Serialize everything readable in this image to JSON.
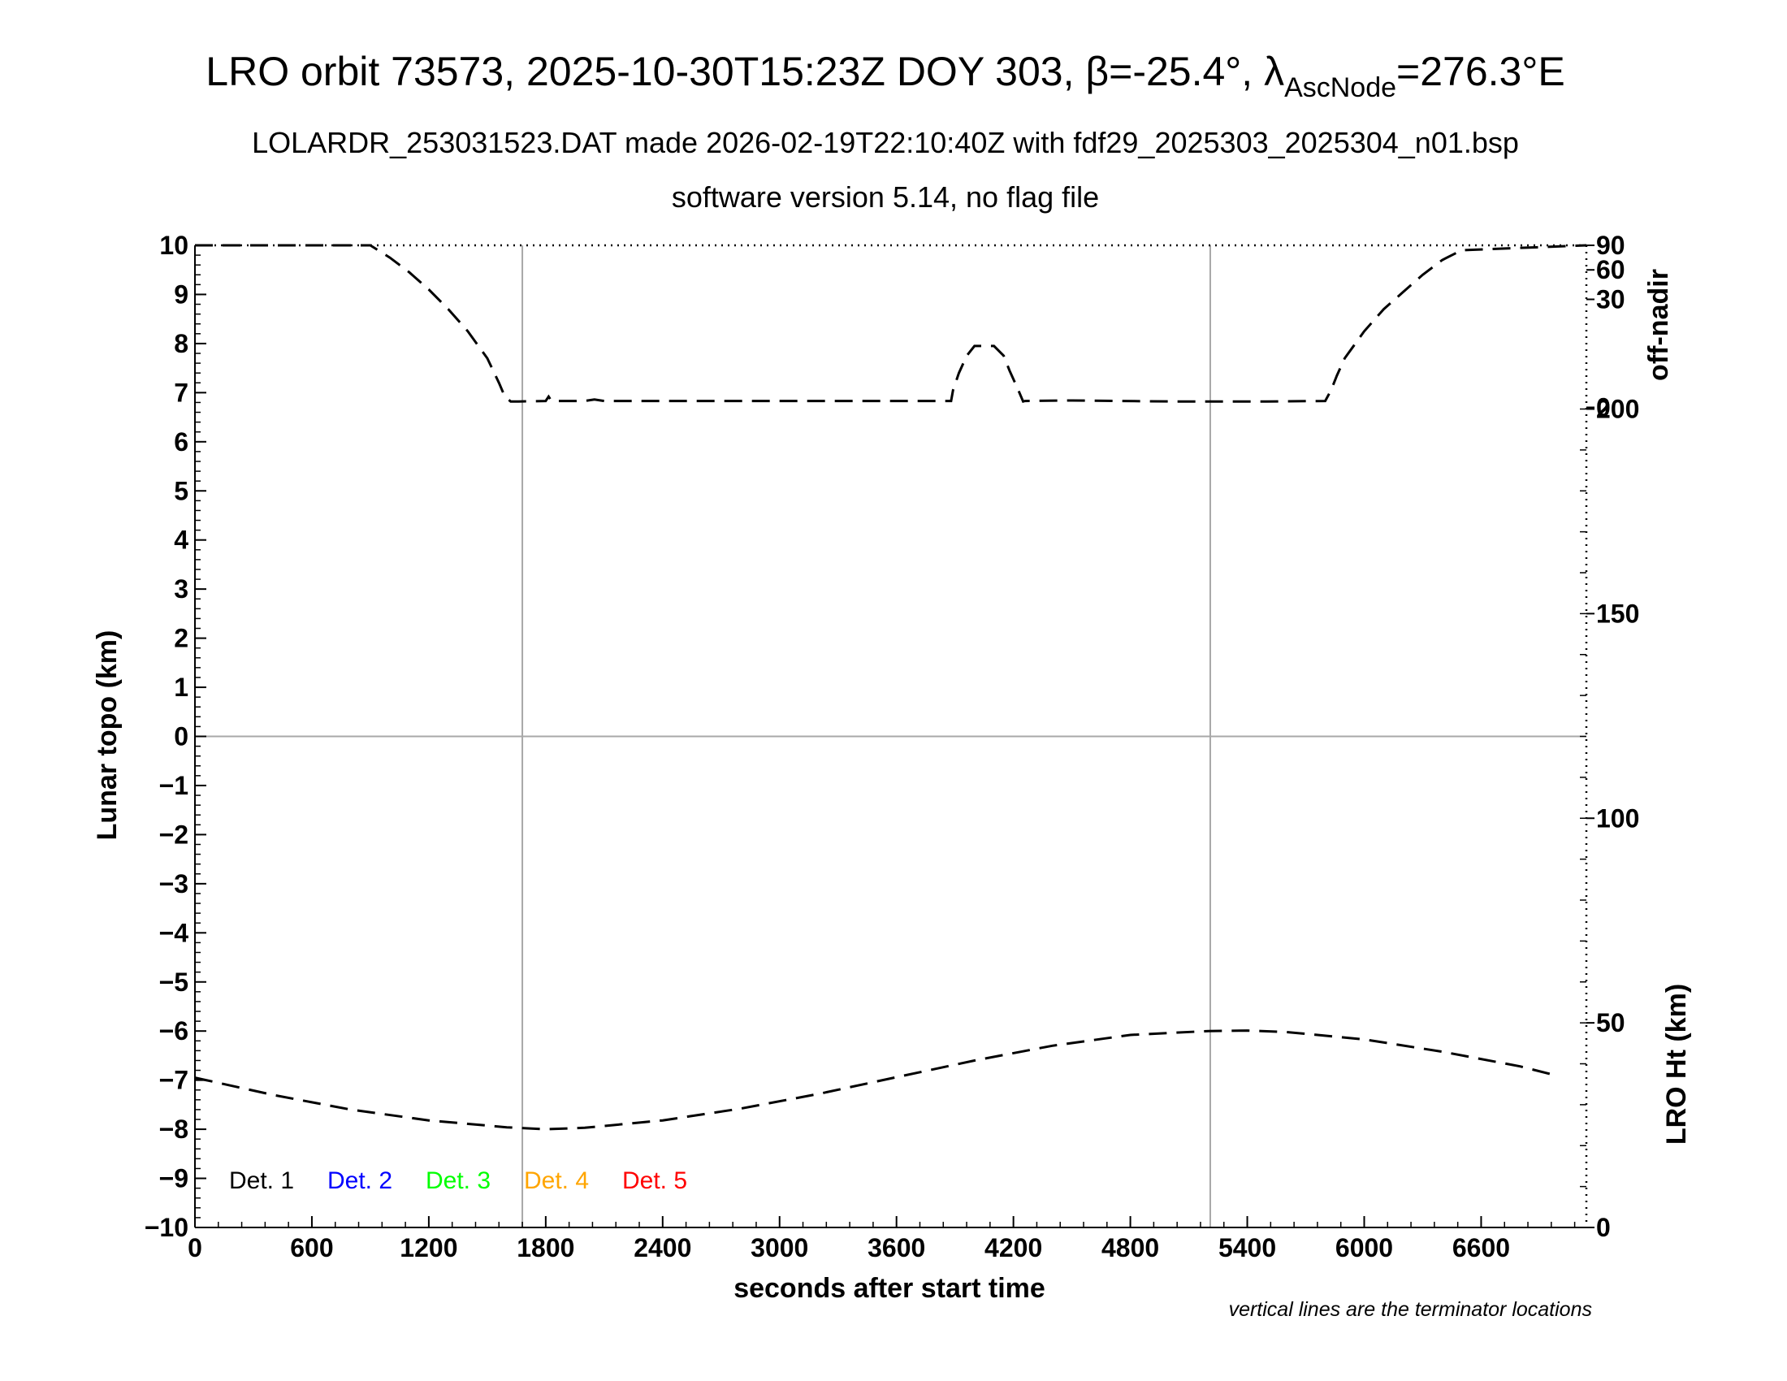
{
  "chart_data": {
    "type": "line",
    "title": {
      "main": "LRO orbit 73573, 2025-10-30T15:23Z DOY 303, β=-25.4°, λ",
      "sub_script": "AscNode",
      "tail": "=276.3°E"
    },
    "subtitle_1": "LOLARDR_253031523.DAT made 2026-02-19T22:10:40Z with fdf29_2025303_2025304_n01.bsp",
    "subtitle_2": "software version 5.14, no flag file",
    "xlabel": "seconds after start time",
    "ylabel_left": "Lunar topo (km)",
    "ylabel_right_top": "off-nadir",
    "ylabel_right_bottom": "LRO Ht (km)",
    "note": "vertical lines are the terminator locations",
    "xlim": [
      0,
      7140
    ],
    "ylim": [
      -10,
      10
    ],
    "x_ticks": [
      0,
      600,
      1200,
      1800,
      2400,
      3000,
      3600,
      4200,
      4800,
      5400,
      6000,
      6600
    ],
    "y_ticks": [
      10,
      9,
      8,
      7,
      6,
      5,
      4,
      3,
      2,
      1,
      0,
      -1,
      -2,
      -3,
      -4,
      -5,
      -6,
      -7,
      -8,
      -9,
      -10
    ],
    "y_tick_labels": [
      "10",
      "9",
      "8",
      "7",
      "6",
      "5",
      "4",
      "3",
      "2",
      "1",
      "0",
      "−1",
      "−2",
      "−3",
      "−4",
      "−5",
      "−6",
      "−7",
      "−8",
      "−9",
      "−10"
    ],
    "grid": {
      "horizontal_at": [
        0
      ],
      "terminator_x": [
        1680,
        5210
      ]
    },
    "right_axis_offnadir": {
      "tick_labels": [
        "90",
        "60",
        "30",
        "0"
      ],
      "tick_y_positions_km": [
        10,
        9.5,
        8.9,
        6.7
      ]
    },
    "right_axis_height": {
      "range_km": [
        0,
        240
      ],
      "tick_labels": [
        "200",
        "150",
        "100",
        "50",
        "0"
      ],
      "tick_values": [
        200,
        150,
        100,
        50,
        0
      ]
    },
    "legend": [
      {
        "label": "Det. 1",
        "color": "#000000"
      },
      {
        "label": "Det. 2",
        "color": "#0000ff"
      },
      {
        "label": "Det. 3",
        "color": "#00ff00"
      },
      {
        "label": "Det. 4",
        "color": "#ffa500"
      },
      {
        "label": "Det. 5",
        "color": "#ff0000"
      }
    ],
    "series": [
      {
        "role": "off-nadir angle",
        "style": "dashed",
        "color": "#000000",
        "x": [
          0,
          900,
          1000,
          1100,
          1200,
          1300,
          1400,
          1500,
          1560,
          1590,
          1620,
          1660,
          1800,
          1815,
          1830,
          2000,
          2050,
          2100,
          3880,
          3890,
          3920,
          3960,
          4000,
          4100,
          4150,
          4180,
          4220,
          4250,
          4260,
          4500,
          5000,
          5500,
          5800,
          5830,
          5860,
          5900,
          6000,
          6100,
          6200,
          6300,
          6400,
          6500,
          7140
        ],
        "y": [
          10,
          10,
          9.75,
          9.45,
          9.1,
          8.7,
          8.25,
          7.7,
          7.2,
          6.92,
          6.82,
          6.82,
          6.83,
          6.92,
          6.83,
          6.83,
          6.86,
          6.83,
          6.83,
          7.05,
          7.4,
          7.75,
          7.95,
          7.95,
          7.75,
          7.45,
          7.1,
          6.82,
          6.83,
          6.84,
          6.82,
          6.82,
          6.83,
          7.05,
          7.35,
          7.7,
          8.25,
          8.7,
          9.05,
          9.4,
          9.7,
          9.9,
          10
        ]
      },
      {
        "role": "LRO height",
        "style": "dashed",
        "color": "#000000",
        "x": [
          0,
          400,
          800,
          1200,
          1600,
          1800,
          2000,
          2400,
          2800,
          3200,
          3600,
          4000,
          4400,
          4800,
          5200,
          5400,
          5600,
          6000,
          6400,
          6800,
          7000
        ],
        "y": [
          -6.95,
          -7.3,
          -7.6,
          -7.82,
          -7.96,
          -8.0,
          -7.97,
          -7.82,
          -7.58,
          -7.28,
          -6.94,
          -6.6,
          -6.3,
          -6.08,
          -6.0,
          -5.99,
          -6.02,
          -6.17,
          -6.42,
          -6.72,
          -6.92
        ]
      }
    ]
  }
}
